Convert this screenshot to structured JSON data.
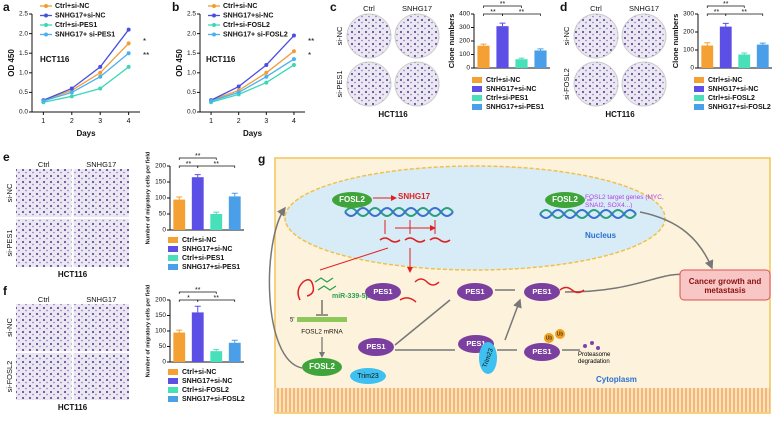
{
  "chart_data": [
    {
      "type": "line",
      "panel_label": "a",
      "xlabel": "Days",
      "ylabel": "OD 450",
      "cell_line": "HCT116",
      "x": [
        1,
        2,
        3,
        4
      ],
      "xlim": [
        0.6,
        4.4
      ],
      "xticks": [
        1,
        2,
        3,
        4
      ],
      "ylim": [
        0,
        2.5
      ],
      "yticks": [
        {
          "value": 0,
          "label": "0.0"
        },
        0.5,
        {
          "value": 1,
          "label": "1.0"
        },
        1.5,
        {
          "value": 2,
          "label": "2.0"
        },
        2.5
      ],
      "series": [
        {
          "name": "Ctrl+si-NC",
          "color": "#f39b35",
          "values": [
            0.3,
            0.55,
            1.0,
            1.75
          ]
        },
        {
          "name": "SNHG17+si-NC",
          "color": "#4b4ee0",
          "values": [
            0.3,
            0.6,
            1.15,
            2.1
          ]
        },
        {
          "name": "Ctrl+si-PES1",
          "color": "#3ad8b5",
          "values": [
            0.25,
            0.4,
            0.6,
            1.15
          ]
        },
        {
          "name": "SNHG17+ si-PES1",
          "color": "#4ab0f0",
          "values": [
            0.28,
            0.5,
            0.9,
            1.5
          ]
        }
      ],
      "annotations": [
        "*",
        "**"
      ]
    },
    {
      "type": "line",
      "panel_label": "b",
      "xlabel": "Days",
      "ylabel": "OD 450",
      "cell_line": "HCT116",
      "x": [
        1,
        2,
        3,
        4
      ],
      "xlim": [
        0.6,
        4.4
      ],
      "xticks": [
        1,
        2,
        3,
        4
      ],
      "ylim": [
        0,
        2.5
      ],
      "yticks": [
        {
          "value": 0,
          "label": "0.0"
        },
        0.5,
        {
          "value": 1,
          "label": "1.0"
        },
        1.5,
        {
          "value": 2,
          "label": "2.0"
        },
        2.5
      ],
      "series": [
        {
          "name": "Ctrl+si-NC",
          "color": "#f39b35",
          "values": [
            0.3,
            0.55,
            1.0,
            1.55
          ]
        },
        {
          "name": "SNHG17+si-NC",
          "color": "#4b4ee0",
          "values": [
            0.3,
            0.65,
            1.2,
            1.95
          ]
        },
        {
          "name": "Ctrl+si-FOSL2",
          "color": "#3ad8b5",
          "values": [
            0.25,
            0.45,
            0.75,
            1.2
          ]
        },
        {
          "name": "SNHG17+ si-FOSL2",
          "color": "#4ab0f0",
          "values": [
            0.28,
            0.5,
            0.9,
            1.35
          ]
        }
      ],
      "annotations": [
        "**",
        "*"
      ]
    },
    {
      "type": "bar",
      "panel_label": "c",
      "ylabel": "Clone numbers",
      "cell_line": "HCT116",
      "image_columns": [
        "Ctrl",
        "SNHG17"
      ],
      "image_rows": [
        "si-NC",
        "si-PES1"
      ],
      "categories": [
        "Ctrl+si-NC",
        "SNHG17+si-NC",
        "Ctrl+si-PES1",
        "SNHG17+si-PES1"
      ],
      "colors": [
        "#f5a033",
        "#5b4fe6",
        "#48e0b8",
        "#4a9fe8"
      ],
      "values": [
        165,
        310,
        65,
        130
      ],
      "errors": [
        12,
        22,
        8,
        12
      ],
      "ylim": [
        0,
        400
      ],
      "yticks": [
        0,
        100,
        200,
        300,
        400
      ],
      "annotations": [
        "**",
        "**",
        "**"
      ]
    },
    {
      "type": "bar",
      "panel_label": "d",
      "ylabel": "Clone numbers",
      "cell_line": "HCT116",
      "image_columns": [
        "Ctrl",
        "SNHG17"
      ],
      "image_rows": [
        "si-NC",
        "si-FOSL2"
      ],
      "categories": [
        "Ctrl+si-NC",
        "SNHG17+si-NC",
        "Ctrl+si-FOSL2",
        "SNHG17+si-FOSL2"
      ],
      "colors": [
        "#f5a033",
        "#5b4fe6",
        "#48e0b8",
        "#4a9fe8"
      ],
      "values": [
        125,
        230,
        75,
        130
      ],
      "errors": [
        15,
        18,
        8,
        8
      ],
      "ylim": [
        0,
        300
      ],
      "yticks": [
        0,
        100,
        200,
        300
      ],
      "annotations": [
        "**",
        "**",
        "**"
      ]
    },
    {
      "type": "bar",
      "panel_label": "e",
      "ylabel": "Number of migratory cells per field",
      "cell_line": "HCT116",
      "image_columns": [
        "Ctrl",
        "SNHG17"
      ],
      "image_rows": [
        "si-NC",
        "si-PES1"
      ],
      "categories": [
        "Ctrl+si-NC",
        "SNHG17+si-NC",
        "Ctrl+si-PES1",
        "SNHG17+si-PES1"
      ],
      "colors": [
        "#f5a033",
        "#5b4fe6",
        "#48e0b8",
        "#4a9fe8"
      ],
      "values": [
        95,
        165,
        50,
        105
      ],
      "errors": [
        8,
        8,
        6,
        10
      ],
      "ylim": [
        0,
        200
      ],
      "yticks": [
        0,
        50,
        100,
        150,
        200
      ],
      "annotations": [
        "**",
        "**",
        "**"
      ]
    },
    {
      "type": "bar",
      "panel_label": "f",
      "ylabel": "Number of migratory cells per field",
      "cell_line": "HCT116",
      "image_columns": [
        "Ctrl",
        "SNHG17"
      ],
      "image_rows": [
        "si-NC",
        "si-FOSL2"
      ],
      "categories": [
        "Ctrl+si-NC",
        "SNHG17+si-NC",
        "Ctrl+si-FOSL2",
        "SNHG17+si-FOSL2"
      ],
      "colors": [
        "#f5a033",
        "#5b4fe6",
        "#48e0b8",
        "#4a9fe8"
      ],
      "values": [
        95,
        160,
        35,
        62
      ],
      "errors": [
        8,
        20,
        5,
        8
      ],
      "ylim": [
        0,
        200
      ],
      "yticks": [
        0,
        50,
        100,
        150,
        200
      ],
      "annotations": [
        "**",
        "*",
        "**"
      ]
    }
  ],
  "diagram": {
    "panel_label": "g",
    "fosl2_nucleus": "FOSL2",
    "snhg17": "SNHG17",
    "fosl2_target": "FOSL2",
    "target_genes": "FOSL2 target genes (MYC, SNAI2, SOX4...)",
    "nucleus": "Nucleus",
    "mirna": "miR-339-5p",
    "five_prime": "5'",
    "mrna": "FOSL2 mRNA",
    "fosl2_protein": "FOSL2",
    "pes1": [
      "PES1",
      "PES1",
      "PES1",
      "PES1",
      "PES1",
      "PES1"
    ],
    "trim23": [
      "Trim23",
      "Trim23"
    ],
    "ub": [
      "Ub",
      "Ub"
    ],
    "proteasome": "Proteasome degradation",
    "cytoplasm": "Cytoplasm",
    "outcome": "Cancer growth and metastasis"
  }
}
